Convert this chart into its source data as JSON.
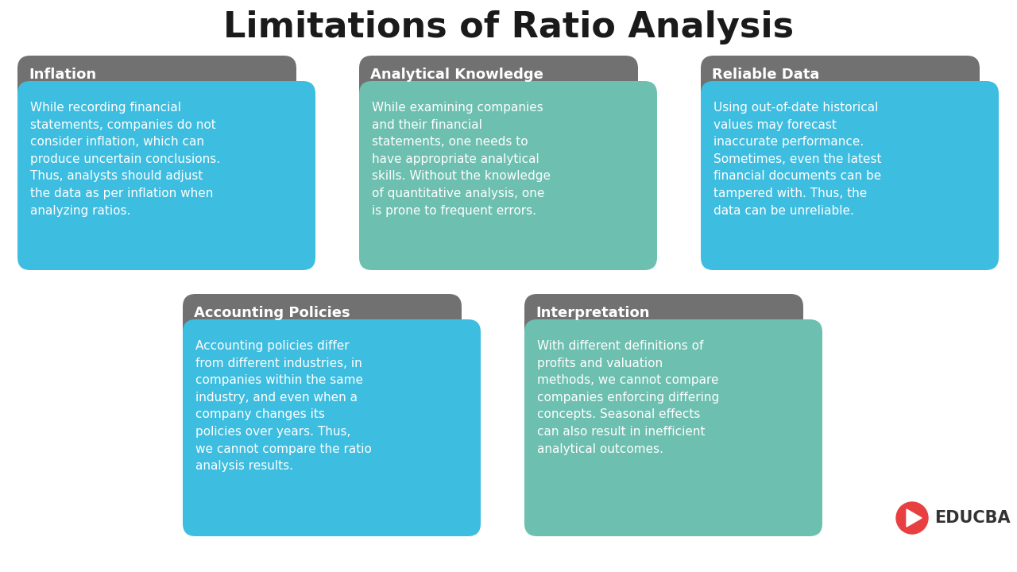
{
  "title": "Limitations of Ratio Analysis",
  "title_fontsize": 32,
  "bg_color": "#ffffff",
  "cards": [
    {
      "title": "Inflation",
      "body": "While recording financial\nstatements, companies do not\nconsider inflation, which can\nproduce uncertain conclusions.\nThus, analysts should adjust\nthe data as per inflation when\nanalyzing ratios.",
      "card_color": "#3dbde0",
      "header_color": "#717171",
      "row": 0,
      "col": 0
    },
    {
      "title": "Analytical Knowledge",
      "body": "While examining companies\nand their financial\nstatements, one needs to\nhave appropriate analytical\nskills. Without the knowledge\nof quantitative analysis, one\nis prone to frequent errors.",
      "card_color": "#6dbfb0",
      "header_color": "#717171",
      "row": 0,
      "col": 1
    },
    {
      "title": "Reliable Data",
      "body": "Using out-of-date historical\nvalues may forecast\ninaccurate performance.\nSometimes, even the latest\nfinancial documents can be\ntampered with. Thus, the\ndata can be unreliable.",
      "card_color": "#3dbde0",
      "header_color": "#717171",
      "row": 0,
      "col": 2
    },
    {
      "title": "Accounting Policies",
      "body": "Accounting policies differ\nfrom different industries, in\ncompanies within the same\nindustry, and even when a\ncompany changes its\npolicies over years. Thus,\nwe cannot compare the ratio\nanalysis results.",
      "card_color": "#3dbde0",
      "header_color": "#717171",
      "row": 1,
      "col": 0
    },
    {
      "title": "Interpretation",
      "body": "With different definitions of\nprofits and valuation\nmethods, we cannot compare\ncompanies enforcing differing\nconcepts. Seasonal effects\ncan also result in inefficient\nanalytical outcomes.",
      "card_color": "#6dbfb0",
      "header_color": "#717171",
      "row": 1,
      "col": 1
    }
  ],
  "educba_text": "EDUCBA",
  "educba_color": "#e84040"
}
